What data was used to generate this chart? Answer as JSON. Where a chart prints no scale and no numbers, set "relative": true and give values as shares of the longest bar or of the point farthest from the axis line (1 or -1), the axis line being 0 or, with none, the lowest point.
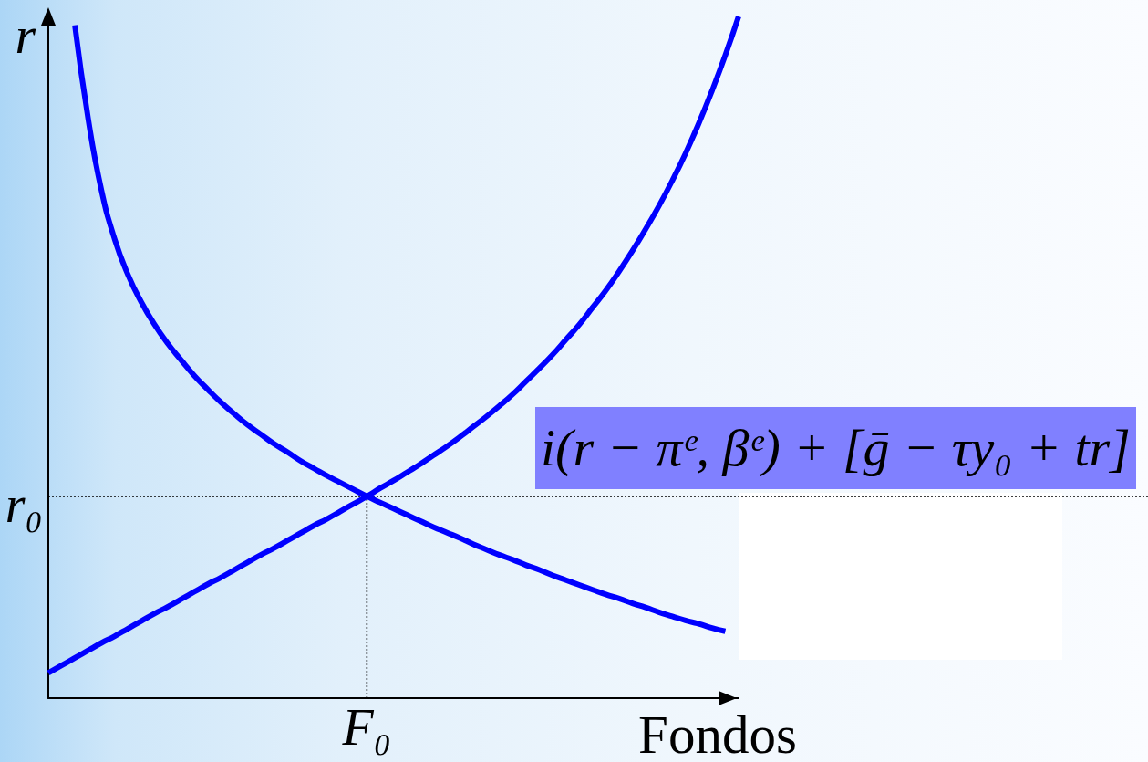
{
  "chart_data": {
    "type": "line",
    "relative": true,
    "xlabel": "Fondos",
    "ylabel": "r",
    "categories": [
      null,
      null,
      null,
      null,
      null,
      null,
      null,
      null,
      null,
      null,
      null,
      null,
      null,
      null,
      null,
      null,
      null,
      null,
      null,
      null,
      null,
      null,
      null,
      null,
      null,
      null,
      null,
      null,
      null,
      null,
      null,
      null,
      null,
      null,
      null,
      null,
      null,
      null,
      null,
      null,
      null,
      null,
      null,
      null,
      null,
      null,
      null,
      null,
      null,
      null,
      null,
      null,
      null
    ],
    "series": [
      {
        "color": "#0000ff",
        "values": [
          null,
          null,
          0.987,
          0.85,
          0.745,
          0.673,
          0.621,
          0.581,
          0.548,
          0.52,
          0.496,
          0.473,
          0.453,
          0.434,
          0.417,
          0.401,
          0.387,
          0.373,
          0.361,
          0.348,
          0.337,
          0.326,
          0.316,
          0.306,
          0.296,
          0.287,
          0.278,
          0.269,
          0.26,
          0.251,
          0.243,
          0.235,
          0.226,
          0.218,
          0.21,
          0.203,
          0.195,
          0.188,
          0.18,
          0.173,
          0.166,
          0.159,
          0.152,
          0.146,
          0.139,
          0.133,
          0.126,
          0.12,
          0.114,
          0.109,
          0.103,
          0.098,
          null
        ]
      },
      {
        "color": "#0000ff",
        "values": [
          0.037,
          0.048,
          0.059,
          0.07,
          0.081,
          0.091,
          0.102,
          0.113,
          0.124,
          0.134,
          0.145,
          0.156,
          0.167,
          0.177,
          0.188,
          0.199,
          0.21,
          0.22,
          0.231,
          0.242,
          0.253,
          0.263,
          0.274,
          0.285,
          0.296,
          0.308,
          0.319,
          0.331,
          0.343,
          0.356,
          0.369,
          0.383,
          0.398,
          0.413,
          0.429,
          0.446,
          0.465,
          0.484,
          0.504,
          0.526,
          0.548,
          0.573,
          0.598,
          0.626,
          0.656,
          0.688,
          0.722,
          0.759,
          0.799,
          0.843,
          0.891,
          0.943,
          1
        ]
      }
    ],
    "ref_lines": [
      {
        "axis": "y",
        "value": 0.296,
        "label": "r₀",
        "line_style": "dotted",
        "color": "#000000"
      }
    ],
    "annotations": [
      "i(r − πᵉ, βᵉ) + [ḡ − τy₀ + tr]",
      "F₀"
    ]
  }
}
